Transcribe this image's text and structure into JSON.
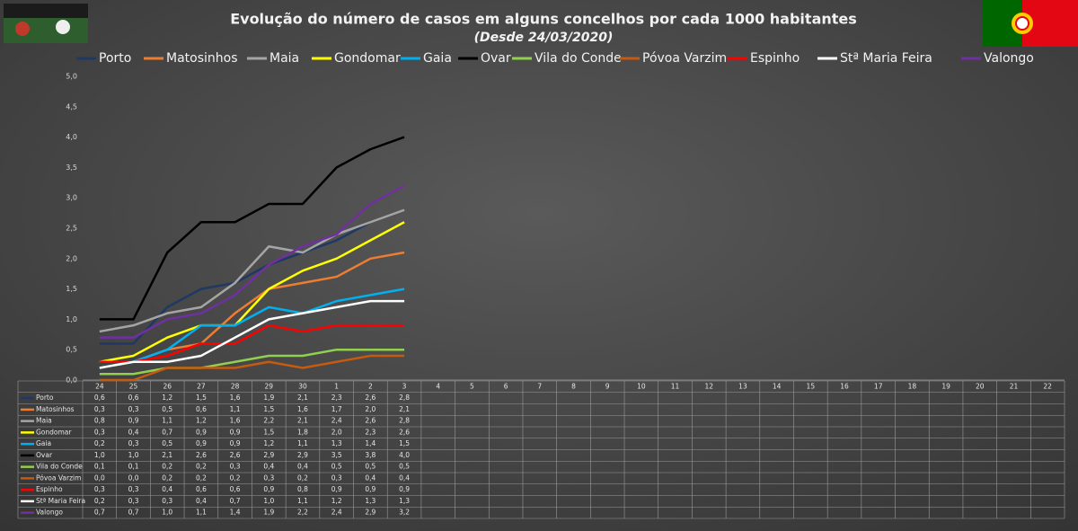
{
  "chart_data": {
    "type": "line",
    "title": "Evolução do número de casos em alguns concelhos por cada 1000 habitantes",
    "subtitle": "(Desde 24/03/2020)",
    "categories": [
      "24",
      "25",
      "26",
      "27",
      "28",
      "29",
      "30",
      "1",
      "2",
      "3",
      "4",
      "5",
      "6",
      "7",
      "8",
      "9",
      "10",
      "11",
      "12",
      "13",
      "14",
      "15",
      "16",
      "17",
      "18",
      "19",
      "20",
      "21",
      "22"
    ],
    "ylim": [
      0,
      5
    ],
    "yticks": [
      {
        "value": 0,
        "label": "0,0"
      },
      {
        "value": 0.5,
        "label": "0,5"
      },
      {
        "value": 1,
        "label": "1,0"
      },
      {
        "value": 1.5,
        "label": "1,5"
      },
      {
        "value": 2,
        "label": "2,0"
      },
      {
        "value": 2.5,
        "label": "2,5"
      },
      {
        "value": 3,
        "label": "3,0"
      },
      {
        "value": 3.5,
        "label": "3,5"
      },
      {
        "value": 4,
        "label": "4,0"
      },
      {
        "value": 4.5,
        "label": "4,5"
      },
      {
        "value": 5,
        "label": "5,0"
      }
    ],
    "grid": false,
    "series": [
      {
        "name": "Porto",
        "color": "#1f3864",
        "values": [
          0.6,
          0.6,
          1.2,
          1.5,
          1.6,
          1.9,
          2.1,
          2.3,
          2.6,
          2.8,
          null,
          null,
          null,
          null,
          null,
          null,
          null,
          null,
          null,
          null,
          null,
          null,
          null,
          null,
          null,
          null,
          null,
          null,
          null
        ],
        "value_labels": [
          "0,6",
          "0,6",
          "1,2",
          "1,5",
          "1,6",
          "1,9",
          "2,1",
          "2,3",
          "2,6",
          "2,8",
          null,
          null,
          null,
          null,
          null,
          null,
          null,
          null,
          null,
          null,
          null,
          null,
          null,
          null,
          null,
          null,
          null,
          null,
          null
        ]
      },
      {
        "name": "Matosinhos",
        "color": "#ed7d31",
        "values": [
          0.3,
          0.3,
          0.5,
          0.6,
          1.1,
          1.5,
          1.6,
          1.7,
          2.0,
          2.1,
          null,
          null,
          null,
          null,
          null,
          null,
          null,
          null,
          null,
          null,
          null,
          null,
          null,
          null,
          null,
          null,
          null,
          null,
          null
        ],
        "value_labels": [
          "0,3",
          "0,3",
          "0,5",
          "0,6",
          "1,1",
          "1,5",
          "1,6",
          "1,7",
          "2,0",
          "2,1",
          null,
          null,
          null,
          null,
          null,
          null,
          null,
          null,
          null,
          null,
          null,
          null,
          null,
          null,
          null,
          null,
          null,
          null,
          null
        ]
      },
      {
        "name": "Maia",
        "color": "#a5a5a5",
        "values": [
          0.8,
          0.9,
          1.1,
          1.2,
          1.6,
          2.2,
          2.1,
          2.4,
          2.6,
          2.8,
          null,
          null,
          null,
          null,
          null,
          null,
          null,
          null,
          null,
          null,
          null,
          null,
          null,
          null,
          null,
          null,
          null,
          null,
          null
        ],
        "value_labels": [
          "0,8",
          "0,9",
          "1,1",
          "1,2",
          "1,6",
          "2,2",
          "2,1",
          "2,4",
          "2,6",
          "2,8",
          null,
          null,
          null,
          null,
          null,
          null,
          null,
          null,
          null,
          null,
          null,
          null,
          null,
          null,
          null,
          null,
          null,
          null,
          null
        ]
      },
      {
        "name": "Gondomar",
        "color": "#ffff00",
        "values": [
          0.3,
          0.4,
          0.7,
          0.9,
          0.9,
          1.5,
          1.8,
          2.0,
          2.3,
          2.6,
          null,
          null,
          null,
          null,
          null,
          null,
          null,
          null,
          null,
          null,
          null,
          null,
          null,
          null,
          null,
          null,
          null,
          null,
          null
        ],
        "value_labels": [
          "0,3",
          "0,4",
          "0,7",
          "0,9",
          "0,9",
          "1,5",
          "1,8",
          "2,0",
          "2,3",
          "2,6",
          null,
          null,
          null,
          null,
          null,
          null,
          null,
          null,
          null,
          null,
          null,
          null,
          null,
          null,
          null,
          null,
          null,
          null,
          null
        ]
      },
      {
        "name": "Gaia",
        "color": "#00b0f0",
        "values": [
          0.2,
          0.3,
          0.5,
          0.9,
          0.9,
          1.2,
          1.1,
          1.3,
          1.4,
          1.5,
          null,
          null,
          null,
          null,
          null,
          null,
          null,
          null,
          null,
          null,
          null,
          null,
          null,
          null,
          null,
          null,
          null,
          null,
          null
        ],
        "value_labels": [
          "0,2",
          "0,3",
          "0,5",
          "0,9",
          "0,9",
          "1,2",
          "1,1",
          "1,3",
          "1,4",
          "1,5",
          null,
          null,
          null,
          null,
          null,
          null,
          null,
          null,
          null,
          null,
          null,
          null,
          null,
          null,
          null,
          null,
          null,
          null,
          null
        ]
      },
      {
        "name": "Ovar",
        "color": "#000000",
        "values": [
          1.0,
          1.0,
          2.1,
          2.6,
          2.6,
          2.9,
          2.9,
          3.5,
          3.8,
          4.0,
          null,
          null,
          null,
          null,
          null,
          null,
          null,
          null,
          null,
          null,
          null,
          null,
          null,
          null,
          null,
          null,
          null,
          null,
          null
        ],
        "value_labels": [
          "1,0",
          "1,0",
          "2,1",
          "2,6",
          "2,6",
          "2,9",
          "2,9",
          "3,5",
          "3,8",
          "4,0",
          null,
          null,
          null,
          null,
          null,
          null,
          null,
          null,
          null,
          null,
          null,
          null,
          null,
          null,
          null,
          null,
          null,
          null,
          null
        ]
      },
      {
        "name": "Vila do Conde",
        "color": "#92d050",
        "values": [
          0.1,
          0.1,
          0.2,
          0.2,
          0.3,
          0.4,
          0.4,
          0.5,
          0.5,
          0.5,
          null,
          null,
          null,
          null,
          null,
          null,
          null,
          null,
          null,
          null,
          null,
          null,
          null,
          null,
          null,
          null,
          null,
          null,
          null
        ],
        "value_labels": [
          "0,1",
          "0,1",
          "0,2",
          "0,2",
          "0,3",
          "0,4",
          "0,4",
          "0,5",
          "0,5",
          "0,5",
          null,
          null,
          null,
          null,
          null,
          null,
          null,
          null,
          null,
          null,
          null,
          null,
          null,
          null,
          null,
          null,
          null,
          null,
          null
        ]
      },
      {
        "name": "Póvoa Varzim",
        "color": "#c55a11",
        "values": [
          0.0,
          0.0,
          0.2,
          0.2,
          0.2,
          0.3,
          0.2,
          0.3,
          0.4,
          0.4,
          null,
          null,
          null,
          null,
          null,
          null,
          null,
          null,
          null,
          null,
          null,
          null,
          null,
          null,
          null,
          null,
          null,
          null,
          null
        ],
        "value_labels": [
          "0,0",
          "0,0",
          "0,2",
          "0,2",
          "0,2",
          "0,3",
          "0,2",
          "0,3",
          "0,4",
          "0,4",
          null,
          null,
          null,
          null,
          null,
          null,
          null,
          null,
          null,
          null,
          null,
          null,
          null,
          null,
          null,
          null,
          null,
          null,
          null
        ]
      },
      {
        "name": "Espinho",
        "color": "#ff0000",
        "values": [
          0.3,
          0.3,
          0.4,
          0.6,
          0.6,
          0.9,
          0.8,
          0.9,
          0.9,
          0.9,
          null,
          null,
          null,
          null,
          null,
          null,
          null,
          null,
          null,
          null,
          null,
          null,
          null,
          null,
          null,
          null,
          null,
          null,
          null
        ],
        "value_labels": [
          "0,3",
          "0,3",
          "0,4",
          "0,6",
          "0,6",
          "0,9",
          "0,8",
          "0,9",
          "0,9",
          "0,9",
          null,
          null,
          null,
          null,
          null,
          null,
          null,
          null,
          null,
          null,
          null,
          null,
          null,
          null,
          null,
          null,
          null,
          null,
          null
        ]
      },
      {
        "name": "Stª Maria Feira",
        "color": "#ffffff",
        "values": [
          0.2,
          0.3,
          0.3,
          0.4,
          0.7,
          1.0,
          1.1,
          1.2,
          1.3,
          1.3,
          null,
          null,
          null,
          null,
          null,
          null,
          null,
          null,
          null,
          null,
          null,
          null,
          null,
          null,
          null,
          null,
          null,
          null,
          null
        ],
        "value_labels": [
          "0,2",
          "0,3",
          "0,3",
          "0,4",
          "0,7",
          "1,0",
          "1,1",
          "1,2",
          "1,3",
          "1,3",
          null,
          null,
          null,
          null,
          null,
          null,
          null,
          null,
          null,
          null,
          null,
          null,
          null,
          null,
          null,
          null,
          null,
          null,
          null
        ]
      },
      {
        "name": "Valongo",
        "color": "#7030a0",
        "values": [
          0.7,
          0.7,
          1.0,
          1.1,
          1.4,
          1.9,
          2.2,
          2.4,
          2.9,
          3.2,
          null,
          null,
          null,
          null,
          null,
          null,
          null,
          null,
          null,
          null,
          null,
          null,
          null,
          null,
          null,
          null,
          null,
          null,
          null
        ],
        "value_labels": [
          "0,7",
          "0,7",
          "1,0",
          "1,1",
          "1,4",
          "1,9",
          "2,2",
          "2,4",
          "2,9",
          "3,2",
          null,
          null,
          null,
          null,
          null,
          null,
          null,
          null,
          null,
          null,
          null,
          null,
          null,
          null,
          null,
          null,
          null,
          null,
          null
        ]
      }
    ]
  }
}
